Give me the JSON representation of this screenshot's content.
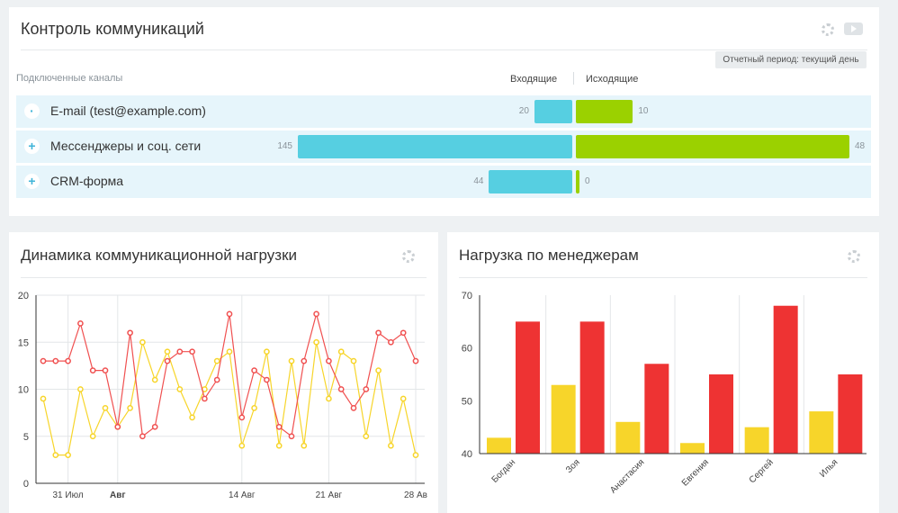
{
  "comm": {
    "title": "Контроль коммуникаций",
    "period": "Отчетный период: текущий день",
    "channels_label": "Подключенные каналы",
    "incoming_label": "Входящие",
    "outgoing_label": "Исходящие",
    "rows": [
      {
        "name": "E-mail (test@example.com)",
        "incoming": 20,
        "outgoing": 10,
        "toggle": "·"
      },
      {
        "name": "Мессенджеры и соц. сети",
        "incoming": 145,
        "outgoing": 48,
        "toggle": "+"
      },
      {
        "name": "CRM-форма",
        "incoming": 44,
        "outgoing": 0,
        "toggle": "+"
      }
    ],
    "colors": {
      "incoming": "#56cfe1",
      "outgoing": "#9bd100"
    }
  },
  "dynamics": {
    "title": "Динамика коммуникационной нагрузки"
  },
  "managers": {
    "title": "Нагрузка по менеджерам"
  },
  "chart_data": [
    {
      "type": "line",
      "title": "Динамика коммуникационной нагрузки",
      "ylim": [
        0,
        20
      ],
      "yticks": [
        0,
        5,
        10,
        15,
        20
      ],
      "xticks": [
        {
          "label": "31 Июл",
          "day": 3
        },
        {
          "label": "Авг",
          "day": 7,
          "bold": true
        },
        {
          "label": "14 Авг",
          "day": 17
        },
        {
          "label": "21 Авг",
          "day": 24
        },
        {
          "label": "28 Ав",
          "day": 31
        }
      ],
      "grid": true,
      "series": [
        {
          "color": "#f05050",
          "values": [
            13,
            13,
            13,
            17,
            12,
            12,
            6,
            16,
            5,
            6,
            13,
            14,
            14,
            9,
            11,
            18,
            7,
            12,
            11,
            6,
            5,
            13,
            18,
            13,
            10,
            8,
            10,
            16,
            15,
            16,
            13
          ]
        },
        {
          "color": "#f7d52a",
          "values": [
            9,
            3,
            3,
            10,
            5,
            8,
            6,
            8,
            15,
            11,
            14,
            10,
            7,
            10,
            13,
            14,
            4,
            8,
            14,
            4,
            13,
            4,
            15,
            9,
            14,
            13,
            5,
            12,
            4,
            9,
            3
          ]
        }
      ]
    },
    {
      "type": "bar",
      "title": "Нагрузка по менеджерам",
      "ylim": [
        40,
        70
      ],
      "yticks": [
        40,
        50,
        60,
        70
      ],
      "categories": [
        "Богдан",
        "Зоя",
        "Анастасия",
        "Евгения",
        "Сергей",
        "Илья"
      ],
      "series": [
        {
          "color": "#f7d52a",
          "values": [
            43,
            53,
            46,
            42,
            45,
            48
          ]
        },
        {
          "color": "#ee3333",
          "values": [
            65,
            65,
            57,
            55,
            68,
            55
          ]
        }
      ]
    }
  ]
}
